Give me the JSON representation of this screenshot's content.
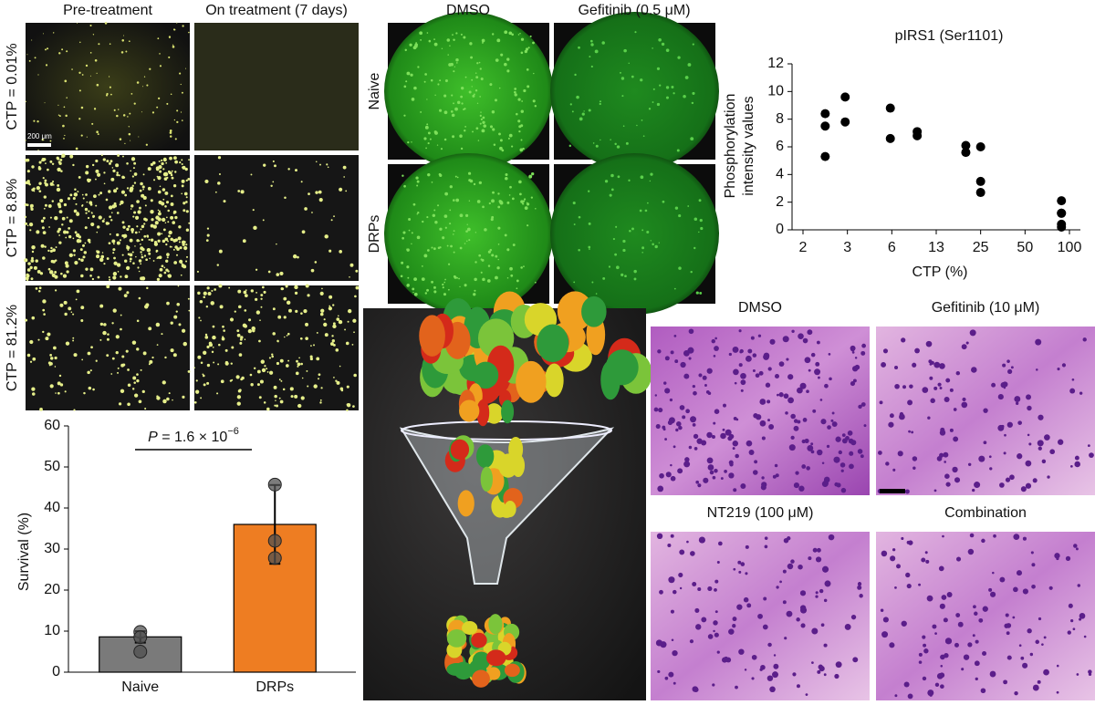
{
  "panels": {
    "growth": {
      "columns": [
        "Pre-treatment",
        "On treatment (7 days)"
      ],
      "rows": [
        "CTP = 0.01%",
        "CTP = 8.8%",
        "CTP = 81.2%"
      ],
      "scale_bar": "200 μm"
    },
    "wells": {
      "columns": [
        "DMSO",
        "Gefitinib (0.5 μM)"
      ],
      "rows": [
        "Naive",
        "DRPs"
      ]
    },
    "histology": {
      "labels": [
        "DMSO",
        "Gefitinib (10 μM)",
        "NT219 (100 μM)",
        "Combination"
      ]
    }
  },
  "chart_data": [
    {
      "type": "scatter",
      "title": "pIRS1 (Ser1101)",
      "x_label": "CTP (%)",
      "y_label": [
        "Phosphorylation",
        "intensity values"
      ],
      "color": "#000000",
      "x": [
        2.5,
        2.5,
        2.5,
        2.95,
        2.95,
        5.9,
        5.9,
        10,
        10,
        21,
        21,
        25,
        25,
        25,
        91,
        91,
        91,
        91,
        91
      ],
      "values": [
        8.4,
        7.5,
        5.3,
        9.6,
        7.8,
        8.8,
        6.6,
        7.1,
        6.8,
        6.1,
        5.6,
        6.0,
        3.5,
        2.7,
        2.1,
        1.2,
        1.2,
        0.4,
        0.2
      ],
      "xlim": [
        2,
        100
      ],
      "xticks": [
        2,
        3,
        6,
        13,
        25,
        50,
        100
      ],
      "ylim": [
        0,
        12
      ],
      "yticks": [
        0,
        2,
        4,
        6,
        8,
        10,
        12
      ]
    },
    {
      "type": "bar",
      "y_label": "Survival (%)",
      "annotation": {
        "italic": "P",
        "text": " = 1.6 × 10",
        "exponent": "−6"
      },
      "categories": [
        "Naive",
        "DRPs"
      ],
      "colors": [
        "#7a7a7a",
        "#ee7d22"
      ],
      "values": [
        8.6,
        36
      ],
      "errors": [
        1.4,
        9.6
      ],
      "points": [
        [
          9.8,
          8.5,
          5.0
        ],
        [
          45.7,
          32,
          27.8
        ]
      ],
      "ylim": [
        0,
        60
      ],
      "yticks": [
        0,
        10,
        20,
        30,
        40,
        50,
        60
      ]
    }
  ]
}
